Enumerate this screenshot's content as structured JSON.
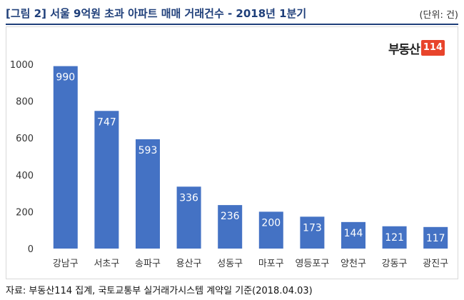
{
  "header": {
    "title": "[그림 2] 서울 9억원 초과 아파트 매매 거래건수 - 2018년 1분기",
    "unit": "(단위: 건)"
  },
  "logo": {
    "text": "부동산",
    "badge": "114",
    "badge_color": "#e8442b"
  },
  "footer": {
    "source": "자료: 부동산114 집계, 국토교통부 실거래가시스템 계약일 기준(2018.04.03)"
  },
  "colors": {
    "bar": "#4472c4",
    "title": "#1f3f7a",
    "value_label": "#ffffff"
  },
  "chart_data": {
    "type": "bar",
    "title": "",
    "xlabel": "",
    "ylabel": "",
    "categories": [
      "강남구",
      "서초구",
      "송파구",
      "용산구",
      "성동구",
      "마포구",
      "영등포구",
      "양천구",
      "강동구",
      "광진구"
    ],
    "values": [
      990,
      747,
      593,
      336,
      236,
      200,
      173,
      144,
      121,
      117
    ],
    "ylim": [
      0,
      1000
    ],
    "yticks": [
      0,
      200,
      400,
      600,
      800,
      1000
    ],
    "grid": false,
    "legend": "none"
  }
}
